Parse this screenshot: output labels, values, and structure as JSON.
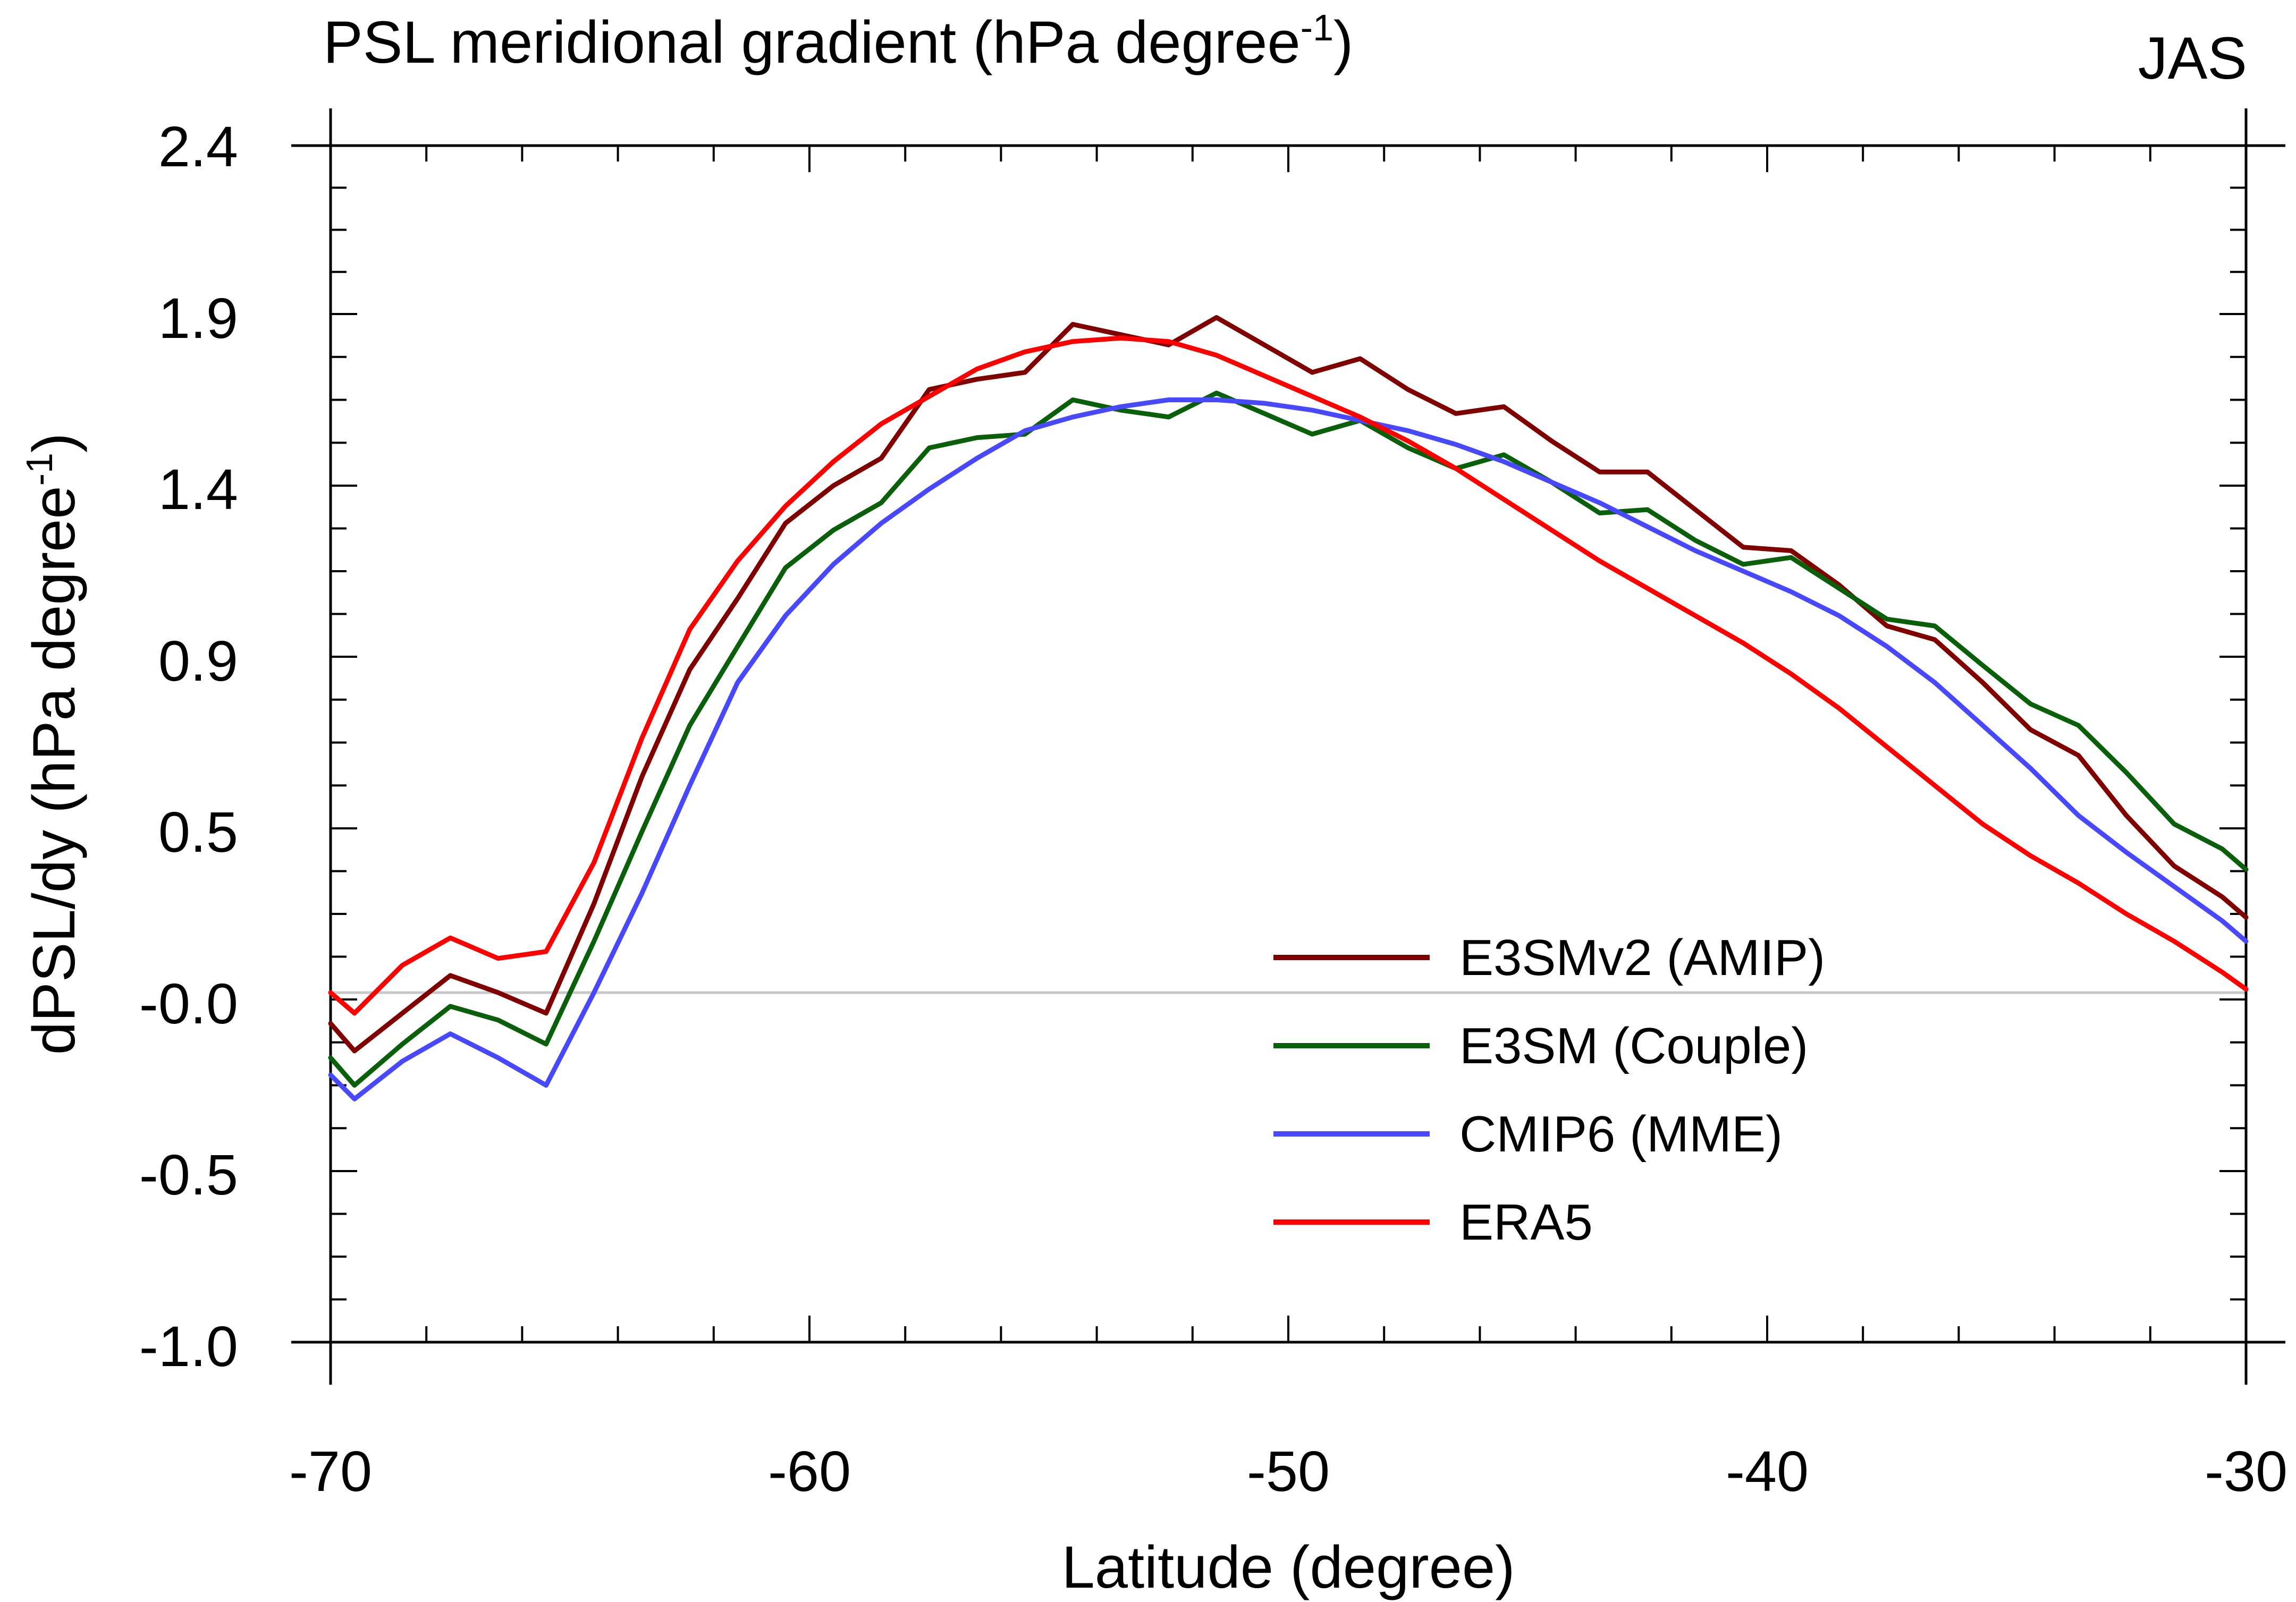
{
  "chart_data": {
    "type": "line",
    "title": "PSL meridional gradient (hPa degree",
    "title_superscript": "-1",
    "title_suffix": ")",
    "season_label": "JAS",
    "xlabel": "Latitude (degree)",
    "ylabel": "dPSL/dy (hPa degree",
    "ylabel_superscript": "-1",
    "ylabel_suffix": ")",
    "xlim": [
      -70,
      -30
    ],
    "ylim": [
      -1.0,
      2.4
    ],
    "x_ticks": [
      -70,
      -60,
      -50,
      -40,
      -30
    ],
    "x_tick_labels": [
      "-70",
      "-60",
      "-50",
      "-40",
      "-30"
    ],
    "y_ticks": [
      -1.0,
      -0.5,
      0.0,
      0.5,
      0.9,
      1.4,
      1.9,
      2.4
    ],
    "y_tick_labels": [
      "-1.0",
      "-0.5",
      "-0.0",
      "0.5",
      "0.9",
      "1.4",
      "1.9",
      "2.4"
    ],
    "zero_line": 0.02,
    "legend_position": "bottom-right",
    "series": [
      {
        "name": "E3SMv2 (AMIP)",
        "color": "#800000",
        "x": [
          -70,
          -69.5,
          -68.5,
          -67.5,
          -66.5,
          -65.5,
          -64.5,
          -63.5,
          -62.5,
          -61.5,
          -60.5,
          -59.5,
          -58.5,
          -57.5,
          -56.5,
          -55.5,
          -54.5,
          -53.5,
          -52.5,
          -51.5,
          -50.5,
          -49.5,
          -48.5,
          -47.5,
          -46.5,
          -45.5,
          -44.5,
          -43.5,
          -42.5,
          -41.5,
          -40.5,
          -39.5,
          -38.5,
          -37.5,
          -36.5,
          -35.5,
          -34.5,
          -33.5,
          -32.5,
          -31.5,
          -30.5,
          -30
        ],
        "values": [
          -0.07,
          -0.15,
          -0.04,
          0.07,
          0.02,
          -0.04,
          0.28,
          0.62,
          0.87,
          1.07,
          1.29,
          1.4,
          1.48,
          1.68,
          1.71,
          1.73,
          1.87,
          1.84,
          1.81,
          1.89,
          1.81,
          1.73,
          1.77,
          1.68,
          1.61,
          1.63,
          1.53,
          1.44,
          1.44,
          1.33,
          1.22,
          1.21,
          1.11,
          0.99,
          0.95,
          0.84,
          0.73,
          0.67,
          0.53,
          0.39,
          0.3,
          0.24
        ]
      },
      {
        "name": "E3SM (Couple)",
        "color": "#0a5f0a",
        "x": [
          -70,
          -69.5,
          -68.5,
          -67.5,
          -66.5,
          -65.5,
          -64.5,
          -63.5,
          -62.5,
          -61.5,
          -60.5,
          -59.5,
          -58.5,
          -57.5,
          -56.5,
          -55.5,
          -54.5,
          -53.5,
          -52.5,
          -51.5,
          -50.5,
          -49.5,
          -48.5,
          -47.5,
          -46.5,
          -45.5,
          -44.5,
          -43.5,
          -42.5,
          -41.5,
          -40.5,
          -39.5,
          -38.5,
          -37.5,
          -36.5,
          -35.5,
          -34.5,
          -33.5,
          -32.5,
          -31.5,
          -30.5,
          -30
        ],
        "values": [
          -0.17,
          -0.25,
          -0.13,
          -0.02,
          -0.06,
          -0.13,
          0.17,
          0.49,
          0.74,
          0.93,
          1.16,
          1.27,
          1.35,
          1.51,
          1.54,
          1.55,
          1.65,
          1.62,
          1.6,
          1.67,
          1.61,
          1.55,
          1.59,
          1.51,
          1.45,
          1.49,
          1.41,
          1.32,
          1.33,
          1.24,
          1.17,
          1.19,
          1.1,
          1.01,
          0.99,
          0.88,
          0.79,
          0.74,
          0.63,
          0.51,
          0.44,
          0.38
        ]
      },
      {
        "name": "CMIP6 (MME)",
        "color": "#4848ff",
        "x": [
          -70,
          -69.5,
          -68.5,
          -67.5,
          -66.5,
          -65.5,
          -64.5,
          -63.5,
          -62.5,
          -61.5,
          -60.5,
          -59.5,
          -58.5,
          -57.5,
          -56.5,
          -55.5,
          -54.5,
          -53.5,
          -52.5,
          -51.5,
          -50.5,
          -49.5,
          -48.5,
          -47.5,
          -46.5,
          -45.5,
          -44.5,
          -43.5,
          -42.5,
          -41.5,
          -40.5,
          -39.5,
          -38.5,
          -37.5,
          -36.5,
          -35.5,
          -34.5,
          -33.5,
          -32.5,
          -31.5,
          -30.5,
          -30
        ],
        "values": [
          -0.22,
          -0.29,
          -0.18,
          -0.1,
          -0.17,
          -0.25,
          0.02,
          0.31,
          0.6,
          0.84,
          1.02,
          1.17,
          1.29,
          1.39,
          1.48,
          1.56,
          1.6,
          1.63,
          1.65,
          1.65,
          1.64,
          1.62,
          1.59,
          1.56,
          1.52,
          1.47,
          1.41,
          1.35,
          1.28,
          1.21,
          1.15,
          1.09,
          1.02,
          0.93,
          0.84,
          0.74,
          0.64,
          0.53,
          0.43,
          0.33,
          0.23,
          0.17
        ]
      },
      {
        "name": "ERA5",
        "color": "#ff0000",
        "x": [
          -70,
          -69.5,
          -68.5,
          -67.5,
          -66.5,
          -65.5,
          -64.5,
          -63.5,
          -62.5,
          -61.5,
          -60.5,
          -59.5,
          -58.5,
          -57.5,
          -56.5,
          -55.5,
          -54.5,
          -53.5,
          -52.5,
          -51.5,
          -50.5,
          -49.5,
          -48.5,
          -47.5,
          -46.5,
          -45.5,
          -44.5,
          -43.5,
          -42.5,
          -41.5,
          -40.5,
          -39.5,
          -38.5,
          -37.5,
          -36.5,
          -35.5,
          -34.5,
          -33.5,
          -32.5,
          -31.5,
          -30.5,
          -30
        ],
        "values": [
          0.02,
          -0.04,
          0.1,
          0.18,
          0.12,
          0.14,
          0.4,
          0.71,
          0.98,
          1.18,
          1.34,
          1.47,
          1.58,
          1.66,
          1.74,
          1.79,
          1.82,
          1.83,
          1.82,
          1.78,
          1.72,
          1.66,
          1.6,
          1.53,
          1.45,
          1.36,
          1.27,
          1.18,
          1.1,
          1.02,
          0.94,
          0.86,
          0.78,
          0.69,
          0.6,
          0.51,
          0.42,
          0.34,
          0.25,
          0.17,
          0.08,
          0.03
        ]
      }
    ]
  }
}
